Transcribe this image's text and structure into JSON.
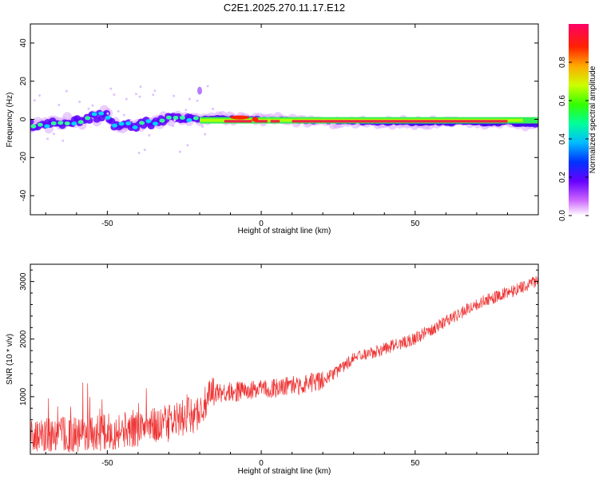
{
  "title": "C2E1.2025.270.11.17.E12",
  "chart_data": [
    {
      "type": "heatmap",
      "xlabel": "Height of straight line (km)",
      "ylabel": "Frequency (Hz)",
      "xlim": [
        -75,
        90
      ],
      "ylim": [
        -50,
        50
      ],
      "x_ticks": [
        -50,
        0,
        50
      ],
      "y_ticks": [
        -40,
        -20,
        0,
        20,
        40
      ],
      "colorbar": {
        "label": "Normalized spectral amplitude",
        "range": [
          0,
          1
        ],
        "ticks": [
          "0.0",
          "0.2",
          "0.4",
          "0.6",
          "0.8"
        ]
      },
      "ridge": [
        {
          "x": -75,
          "freq": -3
        },
        {
          "x": -60,
          "freq": -1
        },
        {
          "x": -50,
          "freq": 3
        },
        {
          "x": -48,
          "freq": -4
        },
        {
          "x": -40,
          "freq": -3
        },
        {
          "x": -30,
          "freq": 0
        },
        {
          "x": -20,
          "freq": 0
        },
        {
          "x": -15,
          "freq": 1
        },
        {
          "x": 0,
          "freq": 0
        },
        {
          "x": 20,
          "freq": -1
        },
        {
          "x": 50,
          "freq": -2
        },
        {
          "x": 80,
          "freq": -2
        },
        {
          "x": 90,
          "freq": -3
        }
      ]
    },
    {
      "type": "line",
      "xlabel": "Height of straight line (km)",
      "ylabel": "SNR (10 * v/v)",
      "xlim": [
        -75,
        90
      ],
      "ylim": [
        0,
        3300
      ],
      "x_ticks": [
        -50,
        0,
        50
      ],
      "y_ticks": [
        1000,
        2000,
        3000
      ],
      "color": "#ee3333",
      "trend": [
        {
          "x": -75,
          "y": 250
        },
        {
          "x": -50,
          "y": 350
        },
        {
          "x": -30,
          "y": 500
        },
        {
          "x": -20,
          "y": 700
        },
        {
          "x": -15,
          "y": 1050
        },
        {
          "x": 0,
          "y": 1100
        },
        {
          "x": 20,
          "y": 1250
        },
        {
          "x": 30,
          "y": 1650
        },
        {
          "x": 50,
          "y": 2000
        },
        {
          "x": 70,
          "y": 2600
        },
        {
          "x": 90,
          "y": 3000
        }
      ]
    }
  ]
}
